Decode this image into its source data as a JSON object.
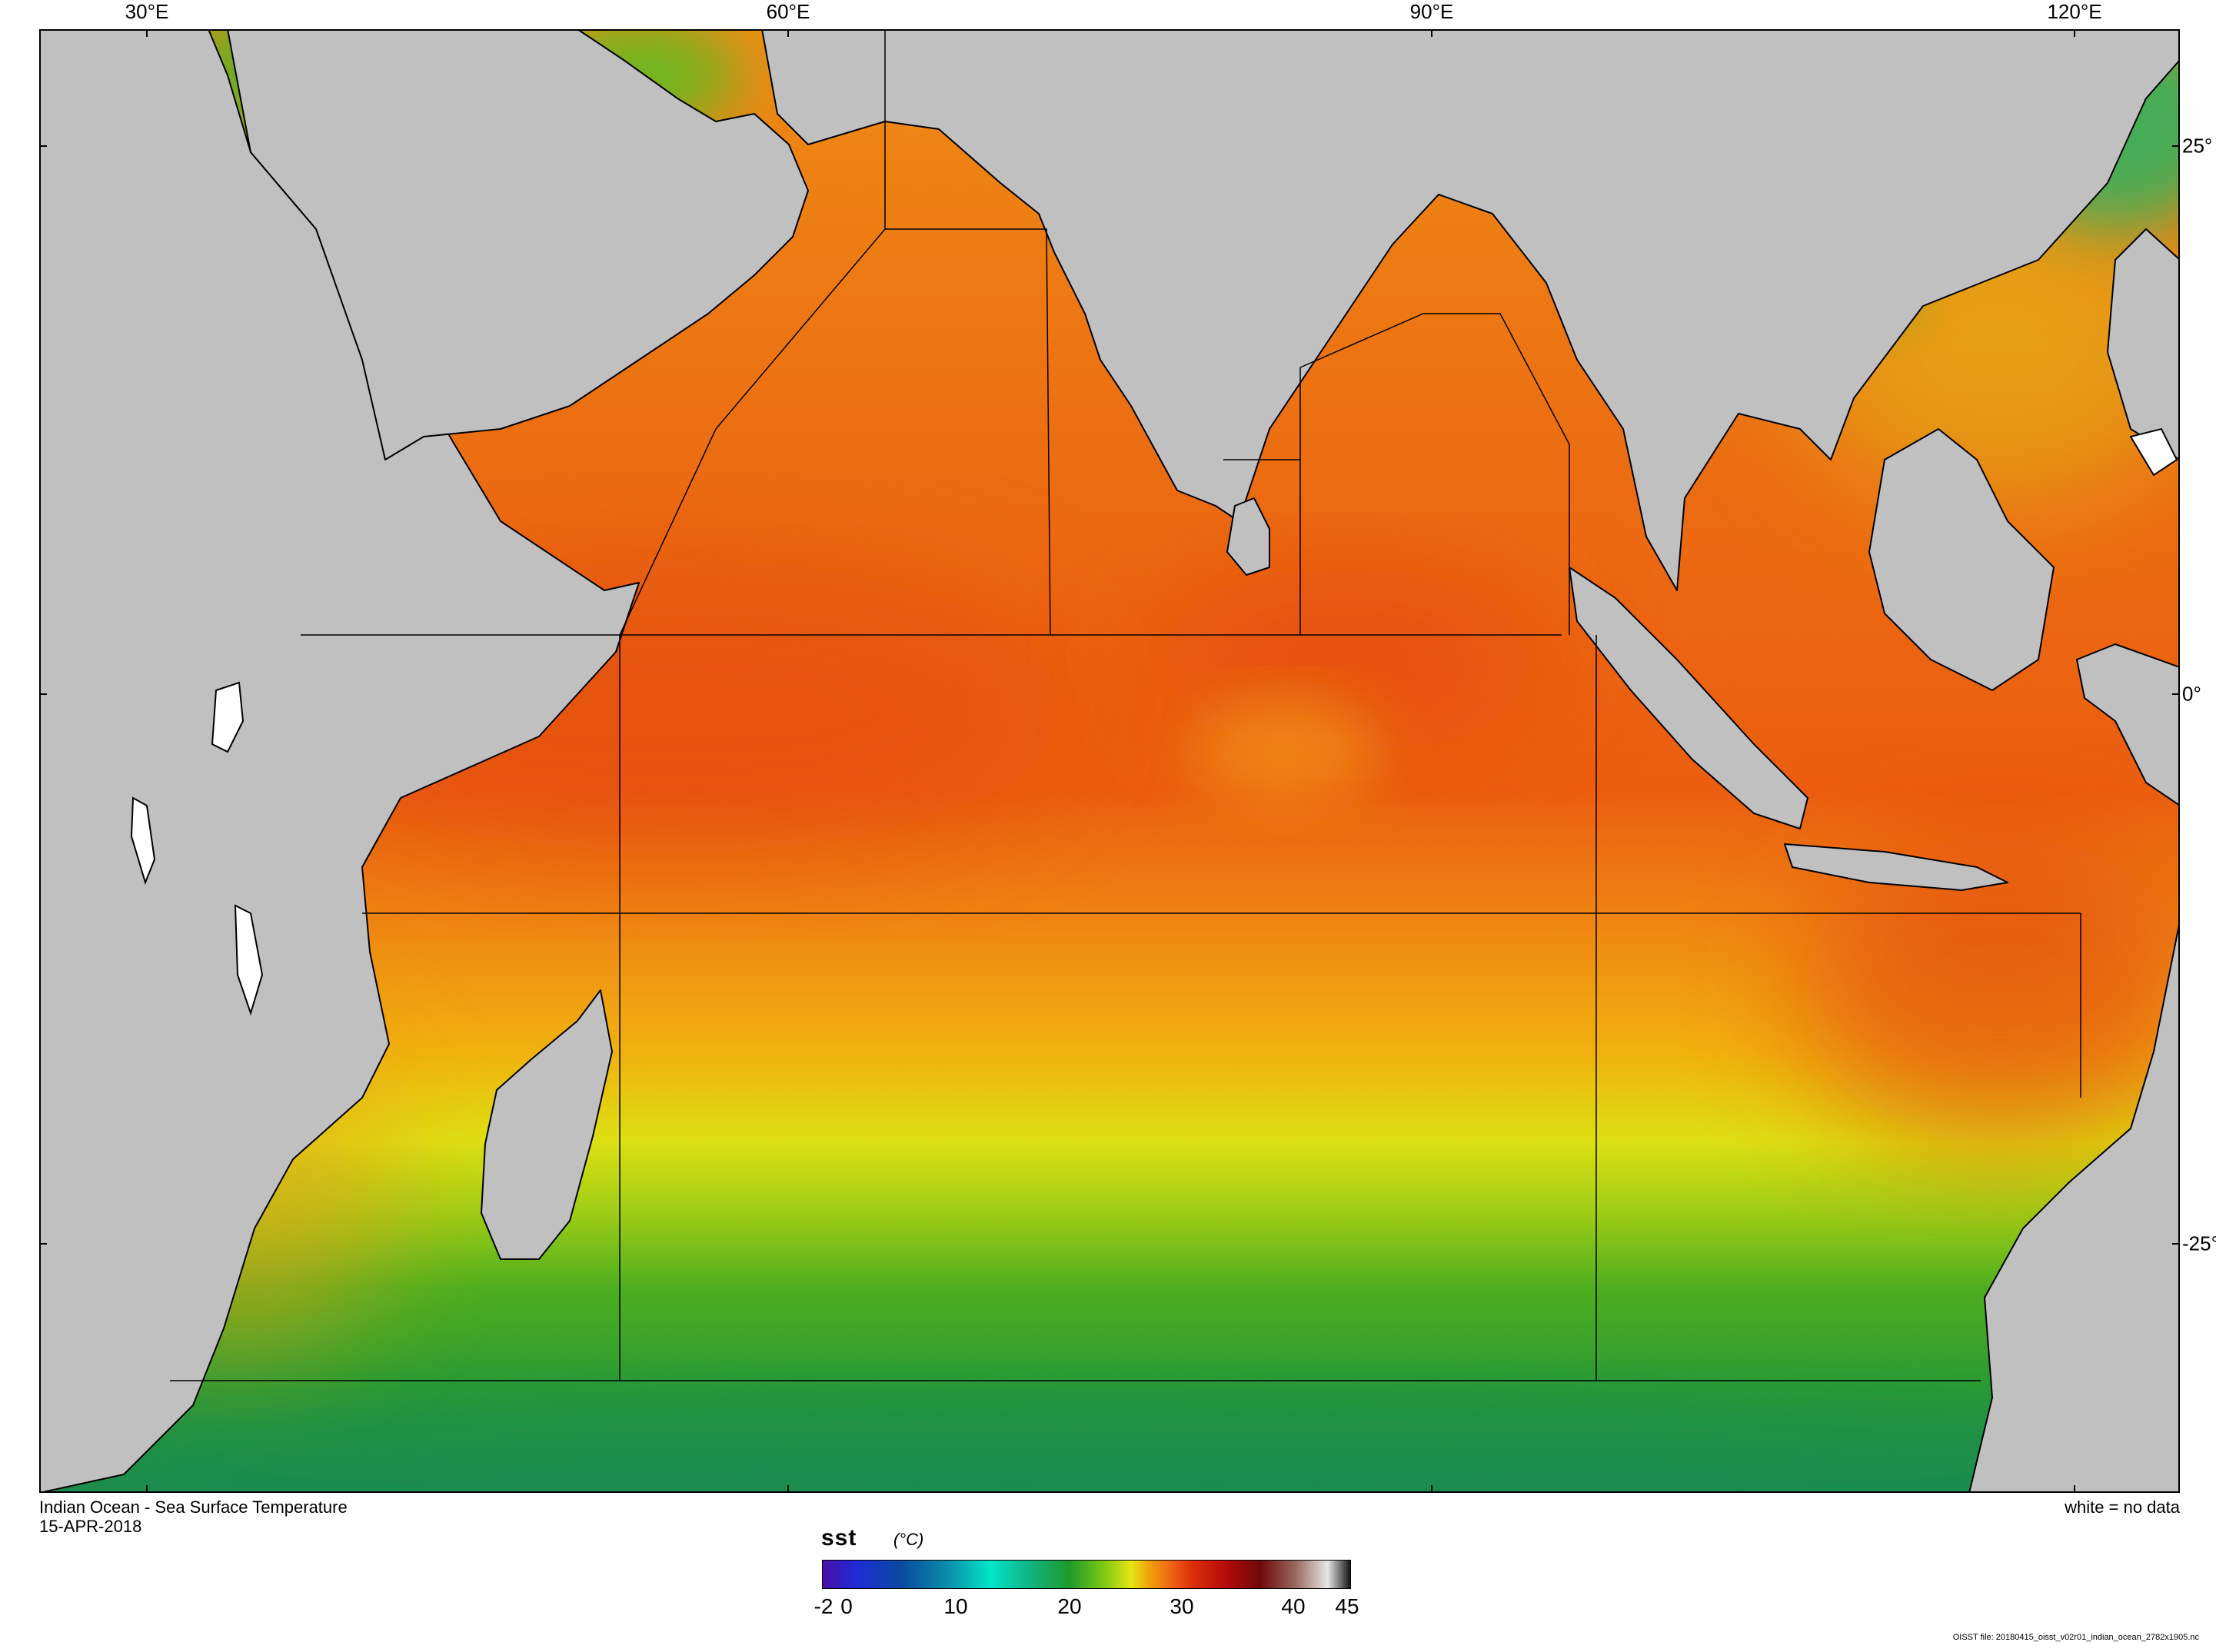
{
  "map": {
    "title": "Indian Ocean - Sea Surface Temperature",
    "date": "15-APR-2018",
    "nodata_note": "white = no data",
    "file_note": "OISST file: 20180415_oisst_v02r01_indian_ocean_2782x1905.nc",
    "lon_labels": [
      "30°E",
      "60°E",
      "90°E",
      "120°E"
    ],
    "lat_labels": [
      "25°",
      "0°",
      "-25°"
    ],
    "colors": {
      "land": "#c0c0c0",
      "coast": "#000000",
      "no_data": "#ffffff"
    }
  },
  "colorbar": {
    "variable": "sst",
    "unit": "(°C)",
    "ticks": [
      "-2",
      "0",
      "10",
      "20",
      "30",
      "40",
      "45"
    ],
    "min": -2,
    "max": 45,
    "stops": [
      {
        "value": -2,
        "color": "#4b0fa8"
      },
      {
        "value": 1,
        "color": "#1d2bd4"
      },
      {
        "value": 5,
        "color": "#0a4aa0"
      },
      {
        "value": 9,
        "color": "#0a8ba8"
      },
      {
        "value": 13,
        "color": "#00e6c8"
      },
      {
        "value": 16,
        "color": "#0fb88c"
      },
      {
        "value": 20,
        "color": "#1e9a2a"
      },
      {
        "value": 23,
        "color": "#7cc814"
      },
      {
        "value": 25.5,
        "color": "#e6e612"
      },
      {
        "value": 27,
        "color": "#f0a50a"
      },
      {
        "value": 29,
        "color": "#f06414"
      },
      {
        "value": 31,
        "color": "#dc2d0a"
      },
      {
        "value": 34,
        "color": "#b40a0a"
      },
      {
        "value": 37,
        "color": "#6e0a0a"
      },
      {
        "value": 40,
        "color": "#96645a"
      },
      {
        "value": 43,
        "color": "#e6e6e6"
      },
      {
        "value": 45,
        "color": "#141414"
      }
    ]
  }
}
